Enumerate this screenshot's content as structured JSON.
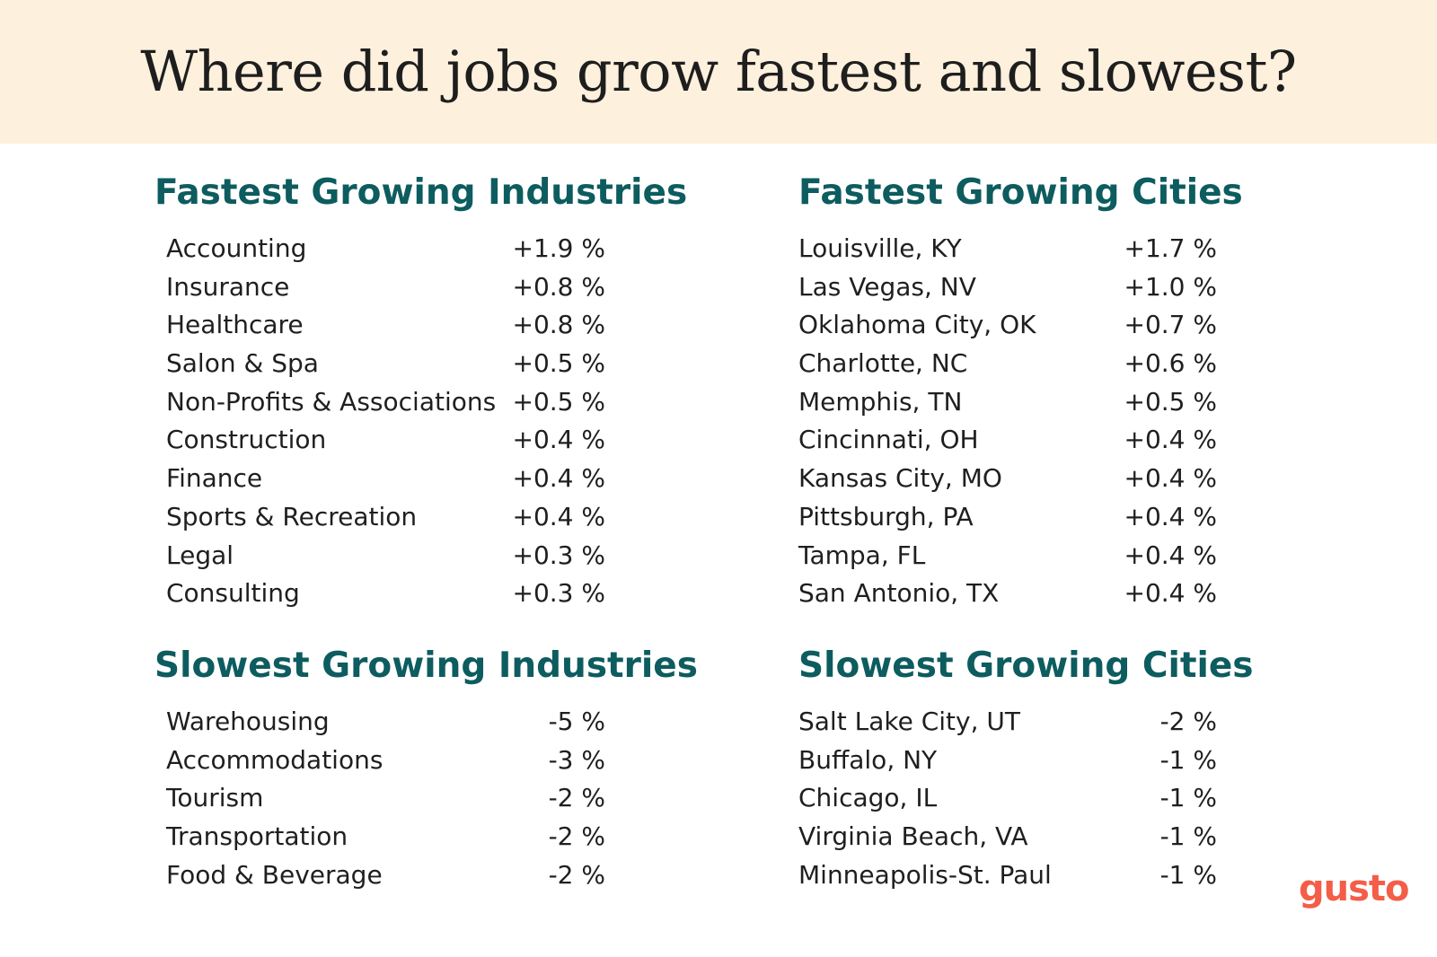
{
  "header": {
    "title": "Where did jobs grow fastest and slowest?",
    "background_color": "#fdf0dc"
  },
  "colors": {
    "heading": "#0d5c5f",
    "text": "#1f1f1f",
    "brand": "#f45d48"
  },
  "brand": {
    "logo_text": "gusto"
  },
  "chart_data": [
    {
      "type": "table",
      "title": "Fastest Growing Industries",
      "categories": [
        "Accounting",
        "Insurance",
        "Healthcare",
        "Salon & Spa",
        "Non-Profits & Associations",
        "Construction",
        "Finance",
        "Sports & Recreation",
        "Legal",
        "Consulting"
      ],
      "values": [
        1.9,
        0.8,
        0.8,
        0.5,
        0.5,
        0.4,
        0.4,
        0.4,
        0.3,
        0.3
      ],
      "labels": [
        "+1.9 %",
        "+0.8 %",
        "+0.8 %",
        "+0.5 %",
        "+0.5 %",
        "+0.4 %",
        "+0.4 %",
        "+0.4 %",
        "+0.3 %",
        "+0.3 %"
      ]
    },
    {
      "type": "table",
      "title": "Slowest Growing Industries",
      "categories": [
        "Warehousing",
        "Accommodations",
        "Tourism",
        "Transportation",
        "Food & Beverage"
      ],
      "values": [
        -5,
        -3,
        -2,
        -2,
        -2
      ],
      "labels": [
        "-5 %",
        "-3 %",
        "-2 %",
        "-2 %",
        "-2 %"
      ]
    },
    {
      "type": "table",
      "title": "Fastest Growing Cities",
      "categories": [
        "Louisville, KY",
        "Las Vegas, NV",
        "Oklahoma City, OK",
        "Charlotte, NC",
        "Memphis, TN",
        "Cincinnati, OH",
        "Kansas City, MO",
        "Pittsburgh, PA",
        "Tampa, FL",
        "San Antonio, TX"
      ],
      "values": [
        1.7,
        1.0,
        0.7,
        0.6,
        0.5,
        0.4,
        0.4,
        0.4,
        0.4,
        0.4
      ],
      "labels": [
        "+1.7 %",
        "+1.0 %",
        "+0.7 %",
        "+0.6 %",
        "+0.5 %",
        "+0.4 %",
        "+0.4 %",
        "+0.4 %",
        "+0.4 %",
        "+0.4 %"
      ]
    },
    {
      "type": "table",
      "title": "Slowest Growing Cities",
      "categories": [
        "Salt Lake City, UT",
        "Buffalo, NY",
        "Chicago, IL",
        "Virginia Beach, VA",
        "Minneapolis-St. Paul"
      ],
      "values": [
        -2,
        -1,
        -1,
        -1,
        -1
      ],
      "labels": [
        "-2 %",
        "-1 %",
        "-1 %",
        "-1 %",
        "-1 %"
      ]
    }
  ]
}
